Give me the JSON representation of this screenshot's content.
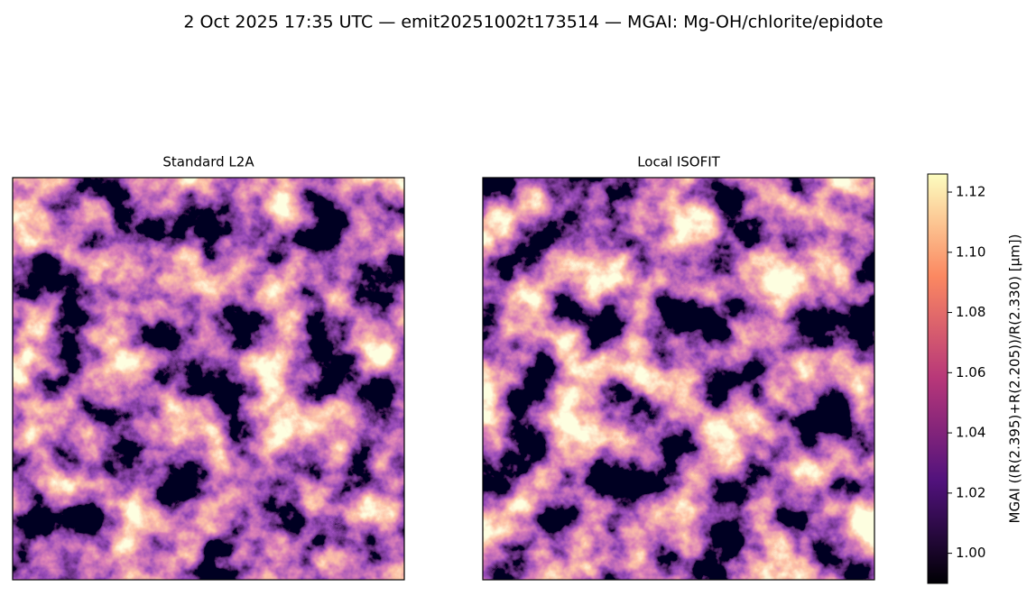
{
  "title": "2 Oct 2025 17:35 UTC — emit20251002t173514 — MGAI: Mg-OH/chlorite/epidote",
  "chart_data": [
    {
      "type": "image",
      "title": "Standard L2A",
      "colormap": "magma"
    },
    {
      "type": "image",
      "title": "Local ISOFIT",
      "colormap": "magma"
    }
  ],
  "colorbar": {
    "label": "MGAI  ((R(2.395)+R(2.205))/R(2.330)  [µm])",
    "colormap": "magma",
    "lim": [
      0.99,
      1.126
    ],
    "ticks": [
      {
        "value": 1.0,
        "label": "1.00"
      },
      {
        "value": 1.02,
        "label": "1.02"
      },
      {
        "value": 1.04,
        "label": "1.04"
      },
      {
        "value": 1.06,
        "label": "1.06"
      },
      {
        "value": 1.08,
        "label": "1.08"
      },
      {
        "value": 1.1,
        "label": "1.10"
      },
      {
        "value": 1.12,
        "label": "1.12"
      }
    ]
  }
}
